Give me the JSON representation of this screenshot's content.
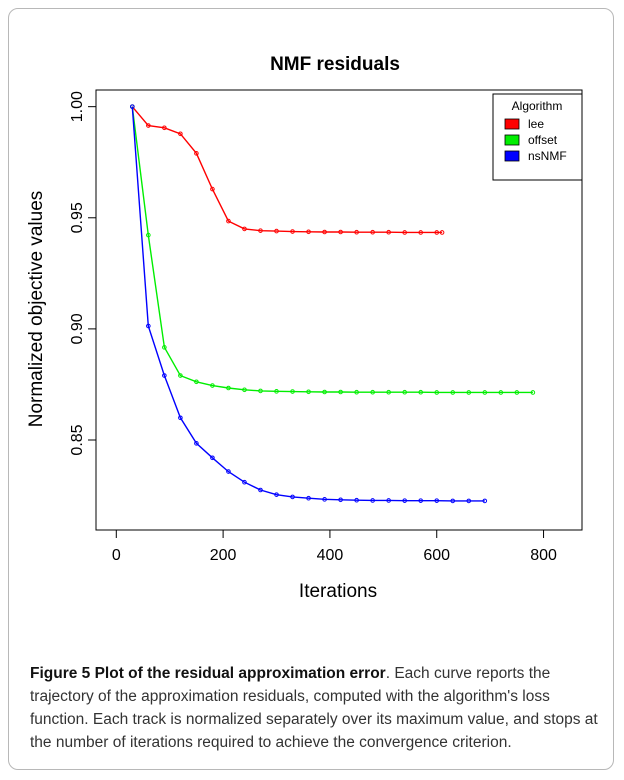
{
  "figure": {
    "caption_title": "Figure 5 Plot of the residual approximation error",
    "caption_body": ". Each curve reports the trajectory of the approximation residuals, computed with the algorithm's loss function. Each track is normalized separately over its maximum value, and stops at the number of iterations required to achieve the convergence criterion."
  },
  "chart_data": {
    "type": "line",
    "title": "NMF residuals",
    "xlabel": "Iterations",
    "ylabel": "Normalized objective values",
    "xlim": [
      -38,
      872
    ],
    "ylim": [
      0.8095,
      1.0075
    ],
    "xticks": [
      0,
      200,
      400,
      600,
      800
    ],
    "yticks": [
      0.85,
      0.9,
      0.95,
      1.0
    ],
    "ytick_labels": [
      "0.85",
      "0.90",
      "0.95",
      "1.00"
    ],
    "grid": false,
    "legend": {
      "title": "Algorithm",
      "placement": "top-right"
    },
    "series": [
      {
        "name": "lee",
        "color": "#ff0000",
        "x": [
          30,
          60,
          90,
          120,
          150,
          180,
          210,
          240,
          270,
          300,
          330,
          360,
          390,
          420,
          450,
          480,
          510,
          540,
          570,
          600,
          610
        ],
        "y": [
          1.0,
          0.9915,
          0.9905,
          0.9878,
          0.979,
          0.9629,
          0.9485,
          0.945,
          0.9442,
          0.944,
          0.9438,
          0.9437,
          0.9436,
          0.9436,
          0.9435,
          0.9435,
          0.9435,
          0.9434,
          0.9434,
          0.9434,
          0.9434
        ]
      },
      {
        "name": "offset",
        "color": "#00ee00",
        "x": [
          30,
          60,
          90,
          120,
          150,
          180,
          210,
          240,
          270,
          300,
          330,
          360,
          390,
          420,
          450,
          480,
          510,
          540,
          570,
          600,
          630,
          660,
          690,
          720,
          750,
          780
        ],
        "y": [
          1.0,
          0.9422,
          0.8917,
          0.879,
          0.8762,
          0.8745,
          0.8734,
          0.8726,
          0.8721,
          0.8719,
          0.8718,
          0.8717,
          0.8716,
          0.8716,
          0.8715,
          0.8715,
          0.8715,
          0.8715,
          0.8715,
          0.8714,
          0.8714,
          0.8714,
          0.8714,
          0.8714,
          0.8714,
          0.8714
        ]
      },
      {
        "name": "nsNMF",
        "color": "#0000ff",
        "x": [
          30,
          60,
          90,
          120,
          150,
          180,
          210,
          240,
          270,
          300,
          330,
          360,
          390,
          420,
          450,
          480,
          510,
          540,
          570,
          600,
          630,
          660,
          690
        ],
        "y": [
          1.0,
          0.9013,
          0.879,
          0.86,
          0.8485,
          0.842,
          0.8358,
          0.831,
          0.8275,
          0.8254,
          0.8244,
          0.8238,
          0.8233,
          0.8231,
          0.8229,
          0.8228,
          0.8228,
          0.8227,
          0.8227,
          0.8227,
          0.8226,
          0.8226,
          0.8226
        ]
      }
    ]
  }
}
